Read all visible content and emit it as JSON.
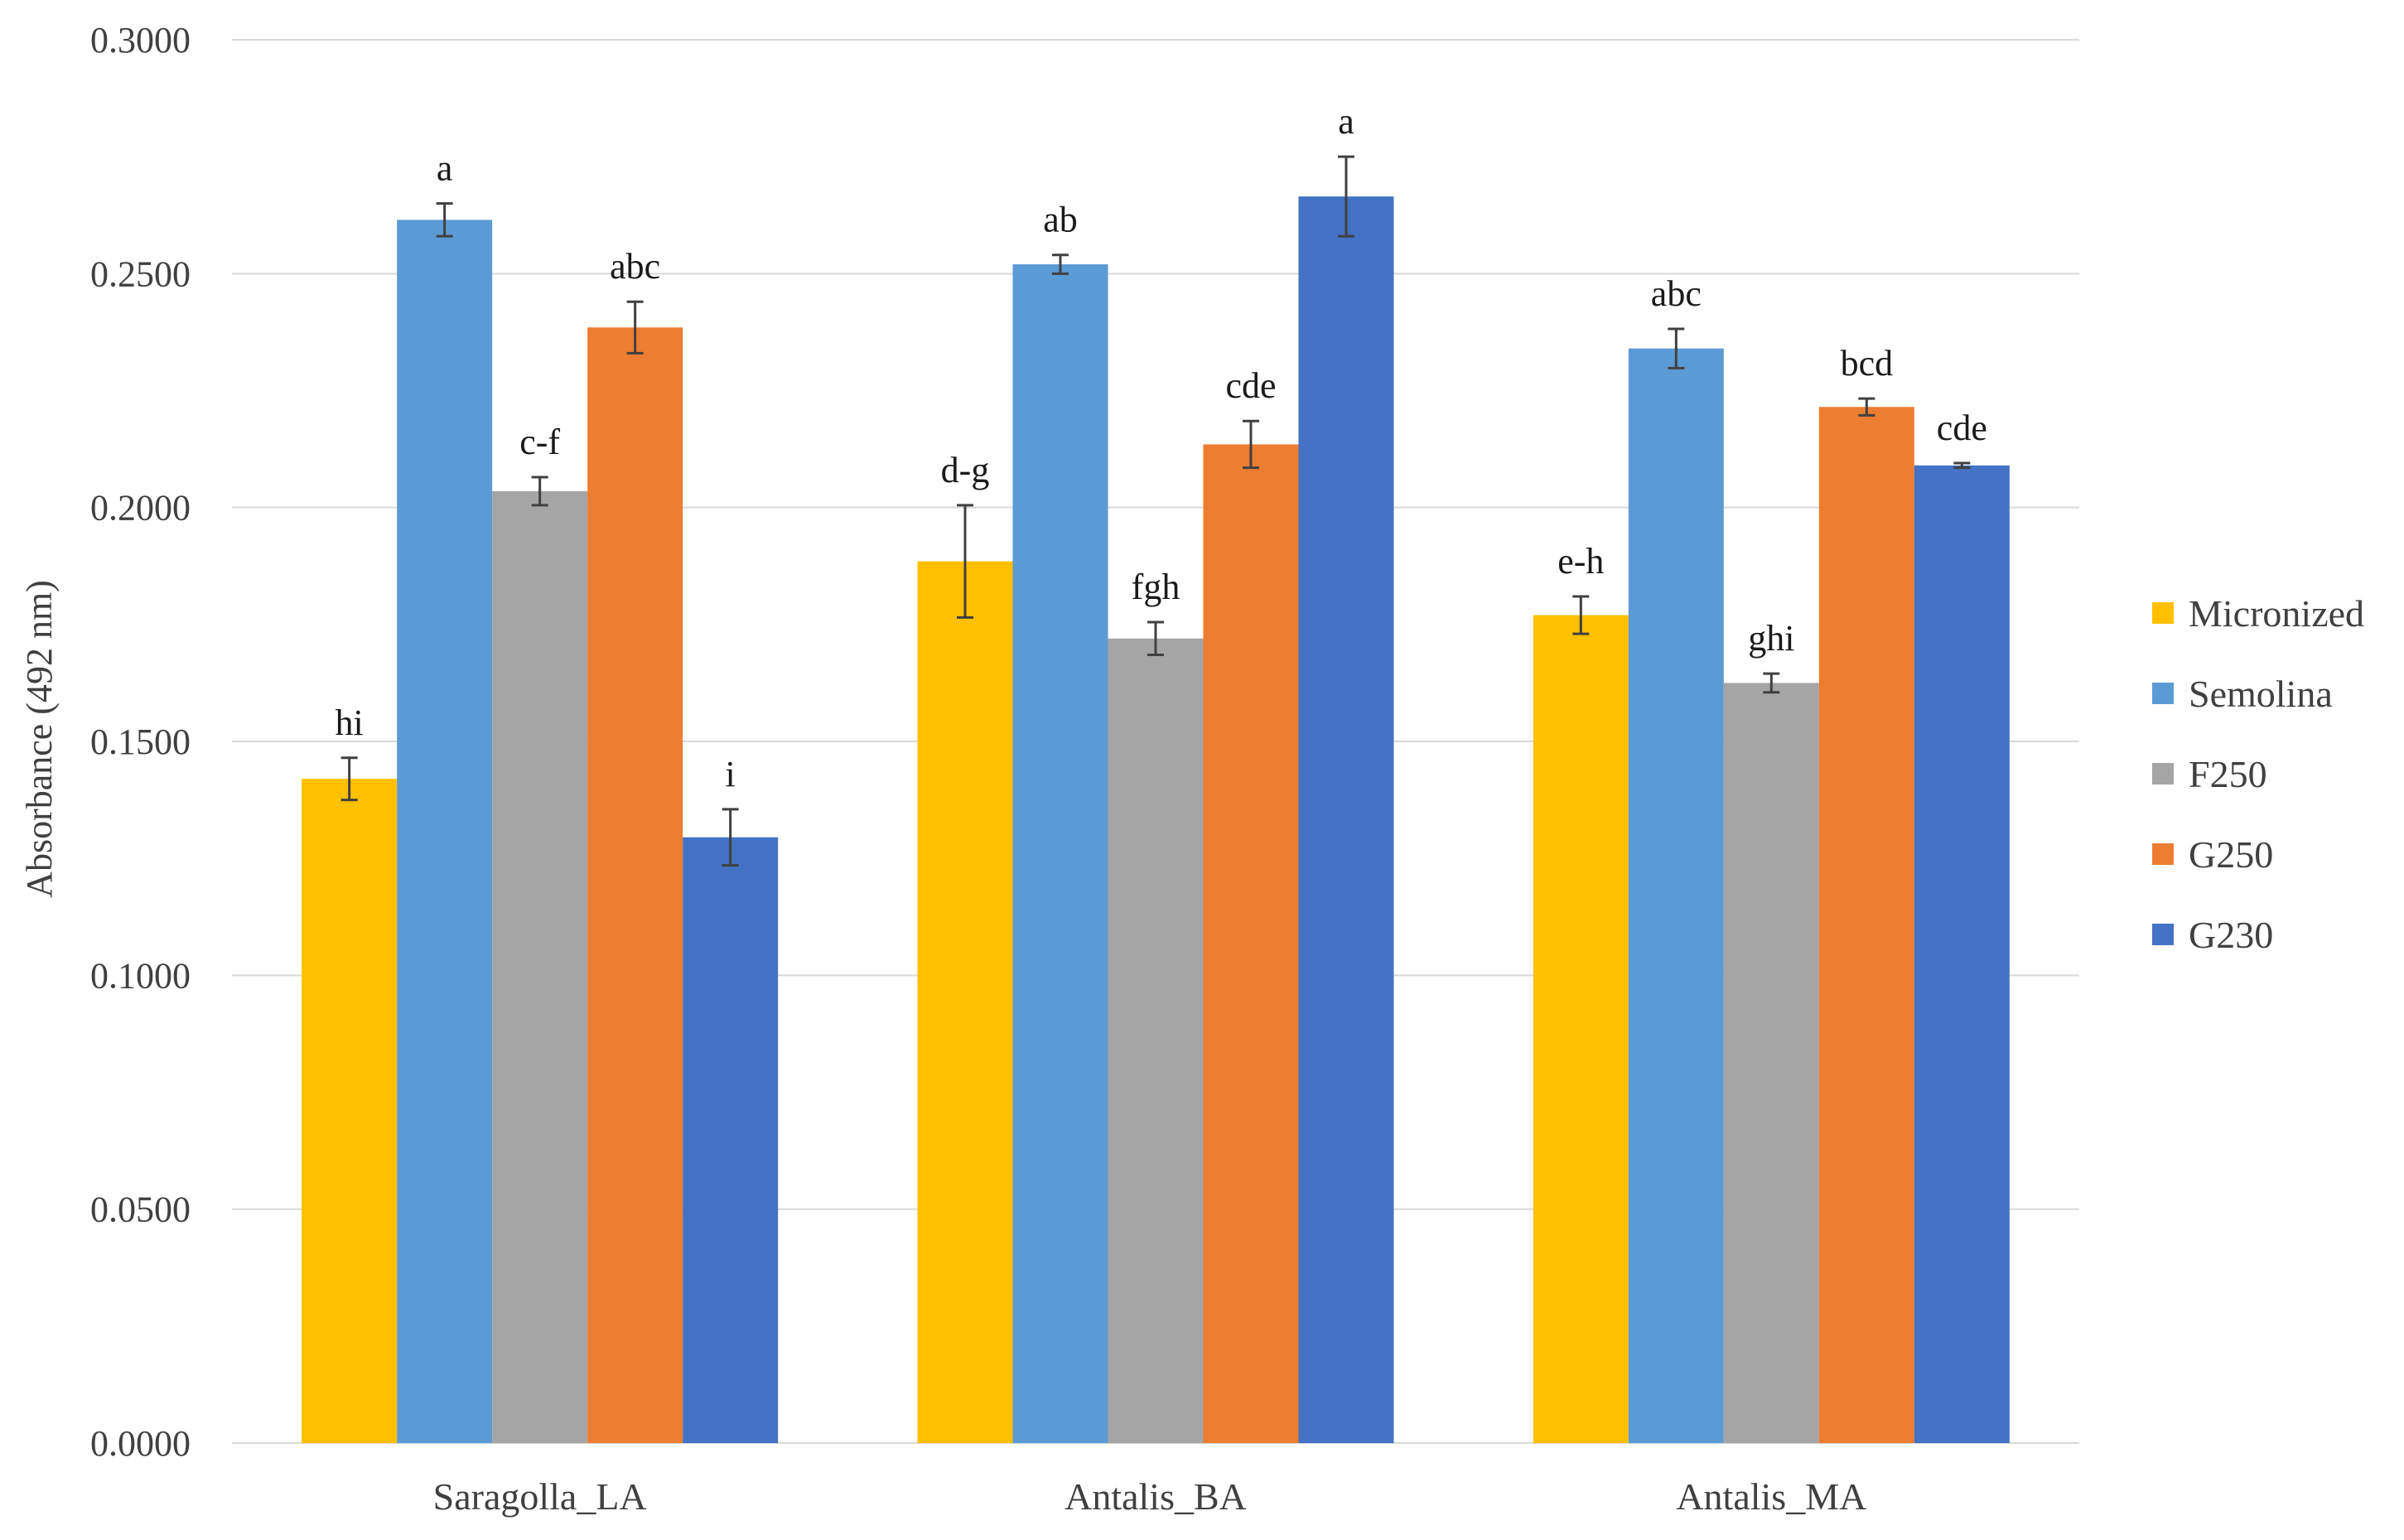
{
  "chart_data": {
    "type": "bar",
    "title": "",
    "xlabel": "",
    "ylabel": "Absorbance (492 nm)",
    "ylim": [
      0,
      0.3
    ],
    "yticks": [
      "0.0000",
      "0.0500",
      "0.1000",
      "0.1500",
      "0.2000",
      "0.2500",
      "0.3000"
    ],
    "ytick_values": [
      0,
      0.05,
      0.1,
      0.15,
      0.2,
      0.25,
      0.3
    ],
    "grid": true,
    "legend_position": "right",
    "categories": [
      "Saragolla_LA",
      "Antalis_BA",
      "Antalis_MA"
    ],
    "series": [
      {
        "name": "Micronized",
        "color": "#FFC000",
        "values": [
          0.142,
          0.1885,
          0.177
        ],
        "errors": [
          0.0045,
          0.012,
          0.004
        ],
        "sig_labels": [
          "hi",
          "d-g",
          "e-h"
        ]
      },
      {
        "name": "Semolina",
        "color": "#5B9BD5",
        "values": [
          0.2615,
          0.252,
          0.234
        ],
        "errors": [
          0.0035,
          0.002,
          0.0042
        ],
        "sig_labels": [
          "a",
          "ab",
          "abc"
        ]
      },
      {
        "name": "F250",
        "color": "#A5A5A5",
        "values": [
          0.2035,
          0.172,
          0.1625
        ],
        "errors": [
          0.003,
          0.0035,
          0.002
        ],
        "sig_labels": [
          "c-f",
          "fgh",
          "ghi"
        ]
      },
      {
        "name": "G250",
        "color": "#ED7D31",
        "values": [
          0.2385,
          0.2135,
          0.2215
        ],
        "errors": [
          0.0055,
          0.005,
          0.0018
        ],
        "sig_labels": [
          "abc",
          "cde",
          "bcd"
        ]
      },
      {
        "name": "G230",
        "color": "#4472C4",
        "values": [
          0.1295,
          0.2665,
          0.209
        ],
        "errors": [
          0.006,
          0.0085,
          0.0005
        ],
        "sig_labels": [
          "i",
          "a",
          "cde"
        ]
      }
    ]
  }
}
